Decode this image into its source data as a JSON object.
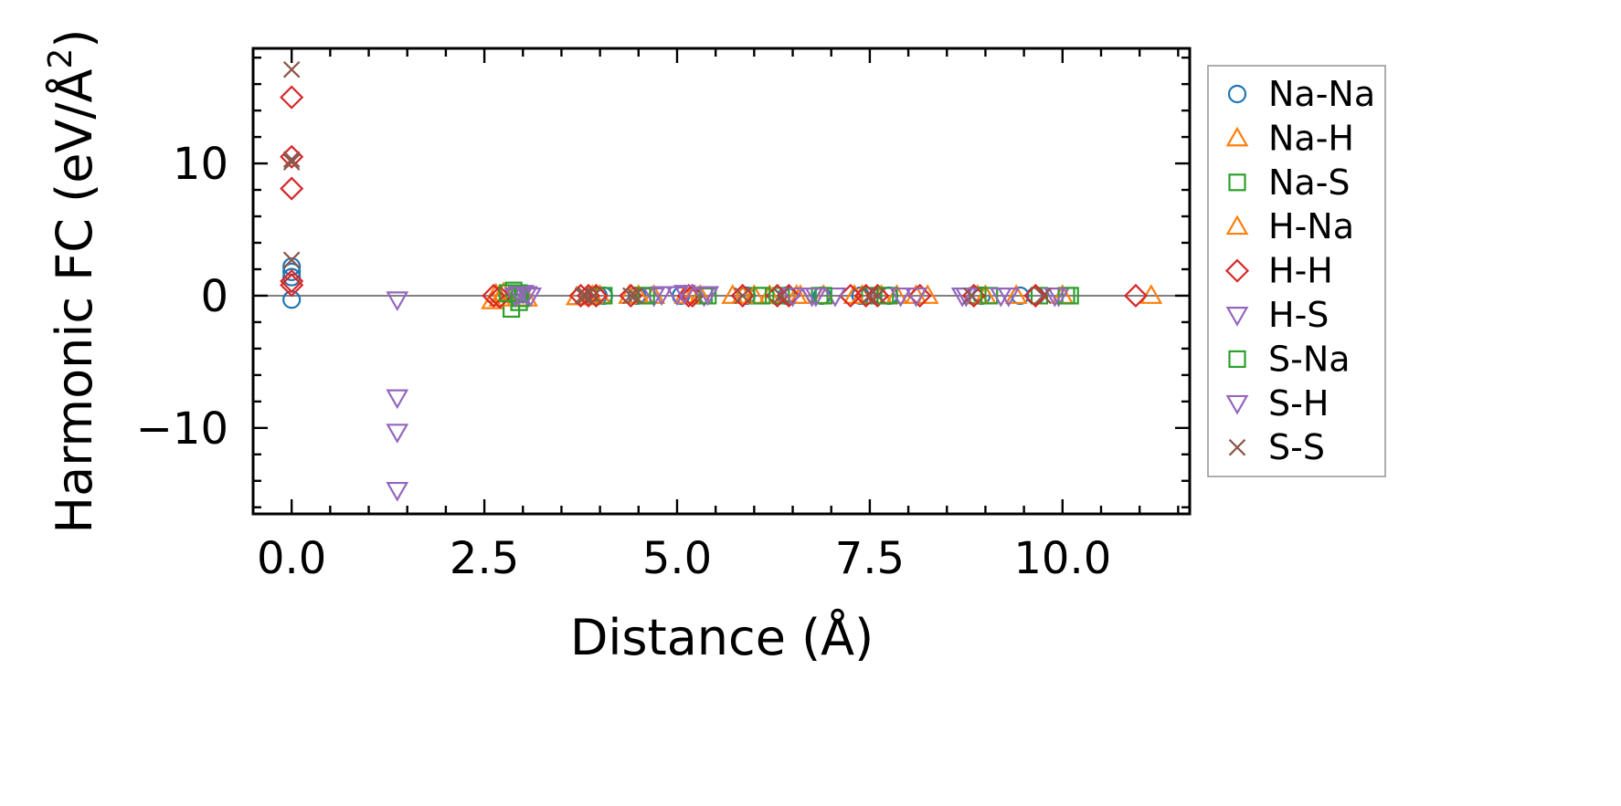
{
  "chart_data": {
    "type": "scatter",
    "title": "",
    "xlabel": "Distance (Å)",
    "ylabel_main": "Harmonic FC (eV/Å",
    "ylabel_sup": "2",
    "ylabel_close": ")",
    "xlim": [
      -0.5,
      11.65
    ],
    "ylim": [
      -16.5,
      18.7
    ],
    "xticks": [
      0.0,
      2.5,
      5.0,
      7.5,
      10.0
    ],
    "xtick_labels": [
      "0.0",
      "2.5",
      "5.0",
      "7.5",
      "10.0"
    ],
    "yticks": [
      -10,
      0,
      10
    ],
    "ytick_labels": [
      "−10",
      "0",
      "10"
    ],
    "zero_line": 0,
    "legend_position": "outside-right",
    "series": [
      {
        "name": "Na-Na",
        "marker": "circle",
        "color": "#1f77b4",
        "points": [
          [
            0,
            -0.3
          ],
          [
            0,
            1.4
          ],
          [
            0,
            1.8
          ],
          [
            0,
            2.2
          ],
          [
            3.98,
            0
          ],
          [
            4.05,
            0
          ],
          [
            4.48,
            0
          ],
          [
            5.05,
            0
          ],
          [
            5.9,
            0
          ],
          [
            6.42,
            0
          ],
          [
            6.88,
            0
          ],
          [
            7.38,
            0
          ],
          [
            7.75,
            0
          ],
          [
            8.95,
            0
          ],
          [
            9.45,
            0
          ],
          [
            9.65,
            0
          ]
        ]
      },
      {
        "name": "Na-H",
        "marker": "triangle-up",
        "color": "#ff7f0e",
        "points": [
          [
            2.6,
            -0.4
          ],
          [
            2.65,
            0.1
          ],
          [
            3.05,
            -0.2
          ],
          [
            3.7,
            -0.1
          ],
          [
            3.85,
            -0.1
          ],
          [
            4.0,
            0
          ],
          [
            4.38,
            0
          ],
          [
            4.7,
            0
          ],
          [
            5.1,
            0
          ],
          [
            5.3,
            0
          ],
          [
            5.72,
            0
          ],
          [
            5.85,
            0
          ],
          [
            6.2,
            0
          ],
          [
            6.55,
            0
          ],
          [
            6.9,
            0
          ],
          [
            7.4,
            0
          ],
          [
            7.65,
            0
          ],
          [
            7.85,
            0
          ],
          [
            8.25,
            0
          ],
          [
            8.9,
            0
          ],
          [
            9.4,
            0
          ],
          [
            11.15,
            0
          ]
        ]
      },
      {
        "name": "Na-S",
        "marker": "square",
        "color": "#2ca02c",
        "points": [
          [
            2.85,
            -1.0
          ],
          [
            2.88,
            0.4
          ],
          [
            2.92,
            0.1
          ],
          [
            2.95,
            -0.5
          ],
          [
            2.97,
            -0.2
          ],
          [
            4.05,
            0
          ],
          [
            4.55,
            0
          ],
          [
            5.35,
            0
          ],
          [
            6.05,
            0
          ],
          [
            6.35,
            0
          ],
          [
            6.85,
            0
          ],
          [
            7.5,
            0
          ],
          [
            7.75,
            0
          ],
          [
            8.9,
            0
          ],
          [
            9.7,
            0
          ],
          [
            10.1,
            0
          ]
        ]
      },
      {
        "name": "H-Na",
        "marker": "triangle-up",
        "color": "#ff7f0e",
        "points": [
          [
            2.7,
            -0.2
          ],
          [
            2.75,
            0.2
          ],
          [
            3.9,
            0
          ],
          [
            4.5,
            0
          ],
          [
            5.2,
            0
          ],
          [
            6.0,
            0
          ],
          [
            6.6,
            0
          ],
          [
            7.3,
            0
          ],
          [
            8.1,
            0
          ],
          [
            9.0,
            0
          ],
          [
            10.0,
            0
          ]
        ]
      },
      {
        "name": "H-H",
        "marker": "diamond",
        "color": "#d62728",
        "points": [
          [
            0,
            15.0
          ],
          [
            0,
            10.5
          ],
          [
            0,
            8.1
          ],
          [
            0,
            1.1
          ],
          [
            0,
            0.8
          ],
          [
            2.62,
            0
          ],
          [
            2.7,
            -0.1
          ],
          [
            3.75,
            0
          ],
          [
            3.85,
            0
          ],
          [
            3.95,
            0
          ],
          [
            4.4,
            0
          ],
          [
            5.15,
            0
          ],
          [
            5.2,
            0
          ],
          [
            5.85,
            0
          ],
          [
            6.3,
            0
          ],
          [
            6.45,
            0
          ],
          [
            7.25,
            0
          ],
          [
            7.45,
            0
          ],
          [
            7.6,
            0
          ],
          [
            8.15,
            0
          ],
          [
            8.85,
            0
          ],
          [
            9.65,
            0
          ],
          [
            10.95,
            0
          ]
        ]
      },
      {
        "name": "H-S",
        "marker": "triangle-down",
        "color": "#9467bd",
        "points": [
          [
            1.37,
            -0.3
          ],
          [
            1.37,
            -7.7
          ],
          [
            1.37,
            -10.3
          ],
          [
            1.37,
            -14.7
          ],
          [
            2.9,
            0
          ],
          [
            3.0,
            0.2
          ],
          [
            3.1,
            0
          ],
          [
            4.7,
            0
          ],
          [
            5.0,
            0.1
          ],
          [
            5.35,
            0
          ],
          [
            6.75,
            0
          ],
          [
            7.05,
            0
          ],
          [
            8.1,
            0
          ],
          [
            8.7,
            0
          ],
          [
            9.3,
            0
          ],
          [
            9.95,
            0
          ]
        ]
      },
      {
        "name": "S-Na",
        "marker": "square",
        "color": "#2ca02c",
        "points": [
          [
            2.8,
            0.2
          ],
          [
            2.95,
            0.2
          ],
          [
            4.6,
            0
          ],
          [
            5.4,
            0
          ],
          [
            6.1,
            0
          ],
          [
            6.9,
            0
          ],
          [
            7.7,
            0
          ],
          [
            9.05,
            0
          ],
          [
            10.05,
            0
          ]
        ]
      },
      {
        "name": "S-H",
        "marker": "triangle-down",
        "color": "#9467bd",
        "points": [
          [
            2.95,
            0.1
          ],
          [
            3.05,
            0.1
          ],
          [
            4.8,
            0.1
          ],
          [
            5.1,
            0.2
          ],
          [
            5.4,
            0.1
          ],
          [
            6.5,
            0
          ],
          [
            6.8,
            0
          ],
          [
            7.9,
            0
          ],
          [
            8.75,
            0
          ],
          [
            9.2,
            0
          ],
          [
            9.9,
            0
          ]
        ]
      },
      {
        "name": "S-S",
        "marker": "x",
        "color": "#8c564b",
        "points": [
          [
            0,
            17.1
          ],
          [
            0,
            10.3
          ],
          [
            0,
            10.1
          ],
          [
            0,
            2.7
          ],
          [
            3.78,
            0
          ],
          [
            3.82,
            0
          ],
          [
            3.92,
            0
          ],
          [
            4.4,
            0
          ],
          [
            4.45,
            0
          ],
          [
            5.85,
            0
          ],
          [
            6.35,
            0
          ],
          [
            7.5,
            0
          ],
          [
            7.6,
            0
          ],
          [
            8.82,
            0
          ],
          [
            9.75,
            0
          ]
        ]
      }
    ]
  }
}
